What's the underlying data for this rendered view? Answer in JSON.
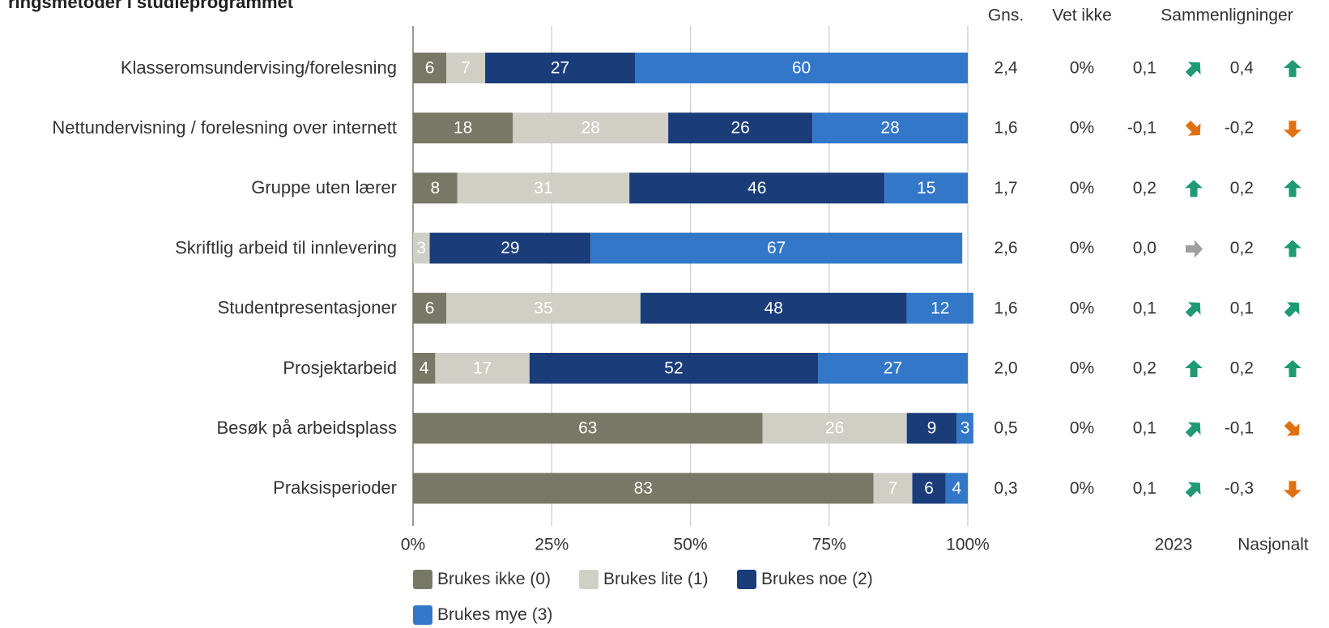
{
  "page_title": "ringsmetoder i studieprogrammet",
  "headers": {
    "mean": "Gns.",
    "dont_know": "Vet ikke",
    "comparisons": "Sammenligninger",
    "comp_2023": "2023",
    "comp_national": "Nasjonalt"
  },
  "colors": {
    "brukes_ikke": "#787866",
    "brukes_lite": "#cfcfc6",
    "brukes_noe": "#1a3d7a",
    "brukes_mye": "#3277c8",
    "arrow_up": "#1f9a73",
    "arrow_down": "#e07012",
    "arrow_flat": "#9e9e9e"
  },
  "chart_data": {
    "type": "bar",
    "orientation": "horizontal",
    "stacked": true,
    "categories": [
      "Klasseromsundervising/forelesning",
      "Nettundervisning / forelesning over internett",
      "Gruppe uten lærer",
      "Skriftlig arbeid til innlevering",
      "Studentpresentasjoner",
      "Prosjektarbeid",
      "Besøk på arbeidsplass",
      "Praksisperioder"
    ],
    "series": [
      {
        "name": "Brukes ikke (0)",
        "color": "#787866",
        "label_color": "#ffffff",
        "values": [
          6,
          18,
          8,
          0,
          6,
          4,
          63,
          83
        ]
      },
      {
        "name": "Brukes lite (1)",
        "color": "#cfcfc6",
        "label_color": "#ffffff",
        "values": [
          7,
          28,
          31,
          3,
          35,
          17,
          26,
          7
        ]
      },
      {
        "name": "Brukes noe (2)",
        "color": "#1a3d7a",
        "label_color": "#ffffff",
        "values": [
          27,
          26,
          46,
          29,
          48,
          52,
          9,
          6
        ]
      },
      {
        "name": "Brukes mye (3)",
        "color": "#3277c8",
        "label_color": "#ffffff",
        "values": [
          60,
          28,
          15,
          67,
          12,
          27,
          3,
          4
        ]
      }
    ],
    "xlim": [
      0,
      100
    ],
    "x_ticks": [
      "0%",
      "25%",
      "50%",
      "75%",
      "100%"
    ],
    "x_tick_values": [
      0,
      25,
      50,
      75,
      100
    ],
    "grid": true,
    "legend_position": "bottom",
    "table_columns": {
      "gns": [
        "2,4",
        "1,6",
        "1,7",
        "2,6",
        "1,6",
        "2,0",
        "0,5",
        "0,3"
      ],
      "vet_ikke": [
        "0%",
        "0%",
        "0%",
        "0%",
        "0%",
        "0%",
        "0%",
        "0%"
      ],
      "comparison_2023": [
        "0,1",
        "-0,1",
        "0,2",
        "0,0",
        "0,1",
        "0,2",
        "0,1",
        "0,1"
      ],
      "comparison_2023_arrow": [
        "up-right",
        "down-right",
        "up",
        "right",
        "up-right",
        "up",
        "up-right",
        "up-right"
      ],
      "comparison_nasjonalt": [
        "0,4",
        "-0,2",
        "0,2",
        "0,2",
        "0,1",
        "0,2",
        "-0,1",
        "-0,3"
      ],
      "comparison_nasjonalt_arrow": [
        "up",
        "down",
        "up",
        "up",
        "up-right",
        "up",
        "down-right",
        "down"
      ]
    }
  }
}
